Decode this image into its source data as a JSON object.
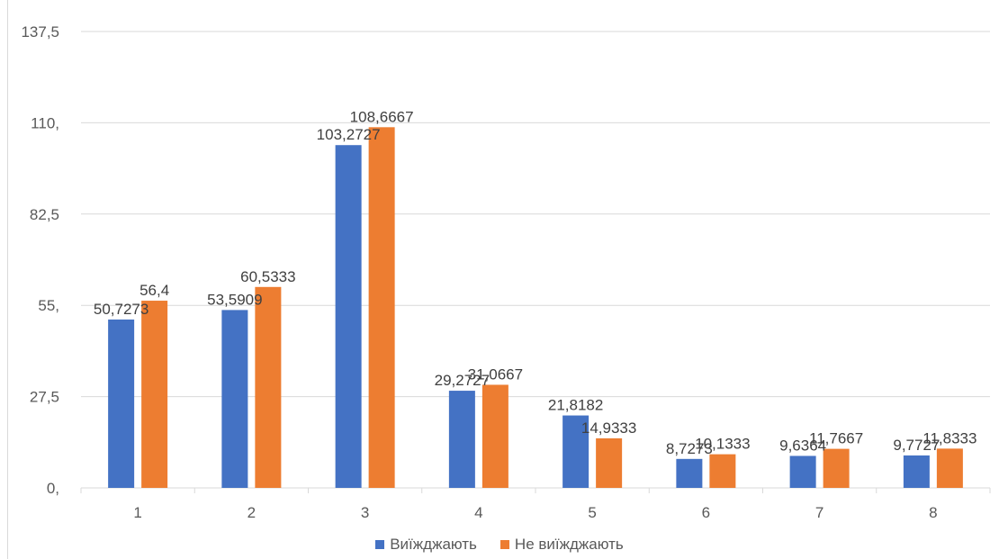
{
  "chart_data": {
    "type": "bar",
    "title": "",
    "xlabel": "",
    "ylabel": "",
    "categories": [
      "1",
      "2",
      "3",
      "4",
      "5",
      "6",
      "7",
      "8"
    ],
    "ylim": [
      0,
      137.5
    ],
    "yticks": [
      "0,",
      "27,5",
      "55,",
      "82,5",
      "110,",
      "137,5"
    ],
    "ytick_values": [
      0,
      27.5,
      55,
      82.5,
      110,
      137.5
    ],
    "grid": true,
    "legend_position": "bottom",
    "series": [
      {
        "name": "Виїжджають",
        "color": "#4472c4",
        "values": [
          50.7273,
          53.5909,
          103.2727,
          29.2727,
          21.8182,
          8.7273,
          9.6364,
          9.7727
        ],
        "labels": [
          "50,7273",
          "53,5909",
          "103,2727",
          "29,2727",
          "21,8182",
          "8,7273",
          "9,6364",
          "9,7727"
        ]
      },
      {
        "name": "Не виїжджають",
        "color": "#ed7d31",
        "values": [
          56.4,
          60.5333,
          108.6667,
          31.0667,
          14.9333,
          10.1333,
          11.7667,
          11.8333
        ],
        "labels": [
          "56,4",
          "60,5333",
          "108,6667",
          "31,0667",
          "14,9333",
          "10,1333",
          "11,7667",
          "11,8333"
        ]
      }
    ]
  }
}
